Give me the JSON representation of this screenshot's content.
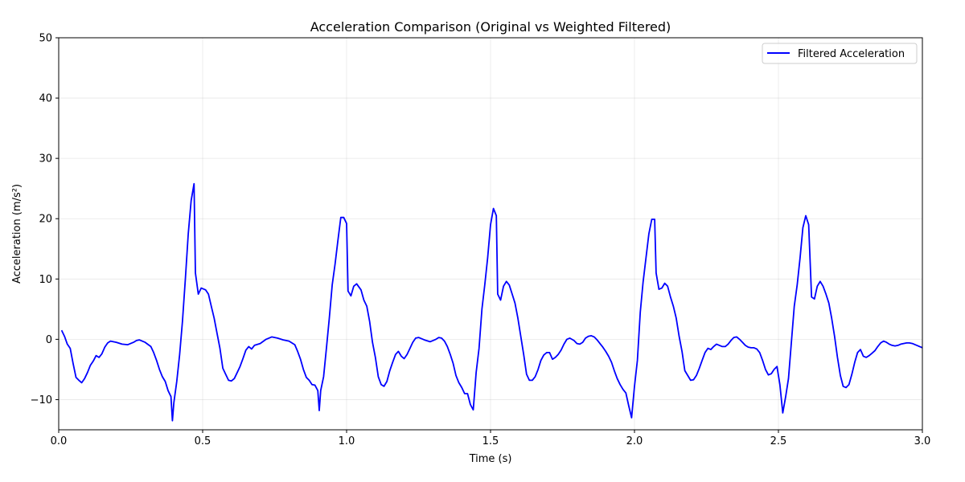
{
  "chart_data": {
    "type": "line",
    "title": "Acceleration Comparison (Original vs Weighted Filtered)",
    "xlabel": "Time (s)",
    "ylabel": "Acceleration (m/s²)",
    "xlim": [
      0,
      3.0
    ],
    "ylim": [
      -15,
      50
    ],
    "xticks": [
      0,
      0.5,
      1.0,
      1.5,
      2.0,
      2.5,
      3.0
    ],
    "xtick_labels": [
      "0.0",
      "0.5",
      "1.0",
      "1.5",
      "2.0",
      "2.5",
      "3.0"
    ],
    "yticks": [
      -10,
      0,
      10,
      20,
      30,
      40,
      50
    ],
    "ytick_labels": [
      "−10",
      "0",
      "10",
      "20",
      "30",
      "40",
      "50"
    ],
    "grid": true,
    "legend_position": "top-right",
    "series": [
      {
        "name": "Filtered Acceleration",
        "color": "#0000ff",
        "points": [
          [
            0.01,
            1.5
          ],
          [
            0.02,
            0.5
          ],
          [
            0.03,
            -0.8
          ],
          [
            0.04,
            -1.5
          ],
          [
            0.05,
            -4.0
          ],
          [
            0.06,
            -6.3
          ],
          [
            0.07,
            -6.8
          ],
          [
            0.08,
            -7.2
          ],
          [
            0.09,
            -6.5
          ],
          [
            0.1,
            -5.5
          ],
          [
            0.11,
            -4.3
          ],
          [
            0.12,
            -3.6
          ],
          [
            0.13,
            -2.7
          ],
          [
            0.14,
            -3.0
          ],
          [
            0.15,
            -2.4
          ],
          [
            0.16,
            -1.3
          ],
          [
            0.17,
            -0.6
          ],
          [
            0.18,
            -0.3
          ],
          [
            0.2,
            -0.5
          ],
          [
            0.22,
            -0.8
          ],
          [
            0.24,
            -0.9
          ],
          [
            0.26,
            -0.5
          ],
          [
            0.27,
            -0.2
          ],
          [
            0.28,
            -0.1
          ],
          [
            0.3,
            -0.5
          ],
          [
            0.32,
            -1.2
          ],
          [
            0.33,
            -2.2
          ],
          [
            0.34,
            -3.5
          ],
          [
            0.35,
            -5.0
          ],
          [
            0.36,
            -6.2
          ],
          [
            0.37,
            -7.0
          ],
          [
            0.38,
            -8.5
          ],
          [
            0.39,
            -9.5
          ],
          [
            0.395,
            -13.5
          ],
          [
            0.4,
            -10.5
          ],
          [
            0.41,
            -7.0
          ],
          [
            0.42,
            -2.5
          ],
          [
            0.43,
            3.0
          ],
          [
            0.44,
            10.0
          ],
          [
            0.45,
            17.5
          ],
          [
            0.46,
            23.0
          ],
          [
            0.47,
            25.8
          ],
          [
            0.475,
            11.0
          ],
          [
            0.485,
            7.5
          ],
          [
            0.495,
            8.5
          ],
          [
            0.51,
            8.2
          ],
          [
            0.52,
            7.5
          ],
          [
            0.53,
            5.5
          ],
          [
            0.54,
            3.5
          ],
          [
            0.55,
            1.0
          ],
          [
            0.56,
            -1.5
          ],
          [
            0.57,
            -4.8
          ],
          [
            0.58,
            -5.8
          ],
          [
            0.59,
            -6.8
          ],
          [
            0.6,
            -6.9
          ],
          [
            0.61,
            -6.5
          ],
          [
            0.62,
            -5.5
          ],
          [
            0.63,
            -4.5
          ],
          [
            0.64,
            -3.2
          ],
          [
            0.65,
            -1.8
          ],
          [
            0.66,
            -1.2
          ],
          [
            0.67,
            -1.6
          ],
          [
            0.68,
            -1.0
          ],
          [
            0.7,
            -0.7
          ],
          [
            0.72,
            0.0
          ],
          [
            0.74,
            0.4
          ],
          [
            0.76,
            0.2
          ],
          [
            0.78,
            -0.1
          ],
          [
            0.8,
            -0.3
          ],
          [
            0.82,
            -0.9
          ],
          [
            0.83,
            -2.0
          ],
          [
            0.84,
            -3.3
          ],
          [
            0.85,
            -5.0
          ],
          [
            0.86,
            -6.3
          ],
          [
            0.87,
            -6.8
          ],
          [
            0.88,
            -7.5
          ],
          [
            0.89,
            -7.6
          ],
          [
            0.9,
            -8.5
          ],
          [
            0.905,
            -11.8
          ],
          [
            0.91,
            -8.5
          ],
          [
            0.92,
            -6.2
          ],
          [
            0.93,
            -1.5
          ],
          [
            0.94,
            3.5
          ],
          [
            0.95,
            9.0
          ],
          [
            0.96,
            12.5
          ],
          [
            0.97,
            16.5
          ],
          [
            0.98,
            20.2
          ],
          [
            0.99,
            20.2
          ],
          [
            1.0,
            19.2
          ],
          [
            1.005,
            8.0
          ],
          [
            1.015,
            7.2
          ],
          [
            1.025,
            8.8
          ],
          [
            1.035,
            9.2
          ],
          [
            1.05,
            8.2
          ],
          [
            1.06,
            6.5
          ],
          [
            1.07,
            5.5
          ],
          [
            1.08,
            3.0
          ],
          [
            1.09,
            -0.5
          ],
          [
            1.1,
            -3.0
          ],
          [
            1.11,
            -6.2
          ],
          [
            1.12,
            -7.5
          ],
          [
            1.13,
            -7.8
          ],
          [
            1.14,
            -7.0
          ],
          [
            1.15,
            -5.2
          ],
          [
            1.16,
            -3.8
          ],
          [
            1.17,
            -2.5
          ],
          [
            1.18,
            -2.0
          ],
          [
            1.19,
            -2.8
          ],
          [
            1.2,
            -3.2
          ],
          [
            1.21,
            -2.5
          ],
          [
            1.22,
            -1.5
          ],
          [
            1.23,
            -0.5
          ],
          [
            1.24,
            0.2
          ],
          [
            1.25,
            0.3
          ],
          [
            1.27,
            -0.1
          ],
          [
            1.29,
            -0.4
          ],
          [
            1.31,
            0.0
          ],
          [
            1.32,
            0.3
          ],
          [
            1.33,
            0.2
          ],
          [
            1.34,
            -0.3
          ],
          [
            1.35,
            -1.2
          ],
          [
            1.36,
            -2.5
          ],
          [
            1.37,
            -4.0
          ],
          [
            1.38,
            -6.0
          ],
          [
            1.39,
            -7.2
          ],
          [
            1.4,
            -8.0
          ],
          [
            1.41,
            -9.0
          ],
          [
            1.42,
            -9.0
          ],
          [
            1.43,
            -10.8
          ],
          [
            1.44,
            -11.7
          ],
          [
            1.45,
            -5.5
          ],
          [
            1.46,
            -1.5
          ],
          [
            1.47,
            5.0
          ],
          [
            1.48,
            9.0
          ],
          [
            1.49,
            13.5
          ],
          [
            1.5,
            19.0
          ],
          [
            1.51,
            21.7
          ],
          [
            1.52,
            20.5
          ],
          [
            1.525,
            7.5
          ],
          [
            1.535,
            6.5
          ],
          [
            1.545,
            8.8
          ],
          [
            1.555,
            9.6
          ],
          [
            1.565,
            9.0
          ],
          [
            1.575,
            7.5
          ],
          [
            1.585,
            6.0
          ],
          [
            1.595,
            3.5
          ],
          [
            1.605,
            0.5
          ],
          [
            1.615,
            -2.5
          ],
          [
            1.625,
            -5.8
          ],
          [
            1.635,
            -6.8
          ],
          [
            1.645,
            -6.8
          ],
          [
            1.655,
            -6.2
          ],
          [
            1.665,
            -5.0
          ],
          [
            1.675,
            -3.5
          ],
          [
            1.685,
            -2.6
          ],
          [
            1.695,
            -2.2
          ],
          [
            1.705,
            -2.2
          ],
          [
            1.715,
            -3.3
          ],
          [
            1.725,
            -3.0
          ],
          [
            1.735,
            -2.5
          ],
          [
            1.745,
            -1.8
          ],
          [
            1.755,
            -0.8
          ],
          [
            1.765,
            0.0
          ],
          [
            1.775,
            0.2
          ],
          [
            1.79,
            -0.2
          ],
          [
            1.8,
            -0.7
          ],
          [
            1.81,
            -0.8
          ],
          [
            1.82,
            -0.5
          ],
          [
            1.83,
            0.2
          ],
          [
            1.84,
            0.5
          ],
          [
            1.85,
            0.6
          ],
          [
            1.86,
            0.4
          ],
          [
            1.87,
            -0.1
          ],
          [
            1.88,
            -0.7
          ],
          [
            1.89,
            -1.3
          ],
          [
            1.9,
            -2.0
          ],
          [
            1.91,
            -2.8
          ],
          [
            1.92,
            -3.8
          ],
          [
            1.93,
            -5.2
          ],
          [
            1.94,
            -6.5
          ],
          [
            1.95,
            -7.5
          ],
          [
            1.96,
            -8.3
          ],
          [
            1.97,
            -8.9
          ],
          [
            1.98,
            -11.0
          ],
          [
            1.99,
            -13.0
          ],
          [
            2.0,
            -7.8
          ],
          [
            2.01,
            -3.5
          ],
          [
            2.02,
            4.5
          ],
          [
            2.03,
            9.5
          ],
          [
            2.04,
            13.5
          ],
          [
            2.05,
            17.5
          ],
          [
            2.06,
            19.9
          ],
          [
            2.07,
            19.9
          ],
          [
            2.075,
            11.0
          ],
          [
            2.085,
            8.3
          ],
          [
            2.095,
            8.5
          ],
          [
            2.105,
            9.3
          ],
          [
            2.115,
            8.8
          ],
          [
            2.125,
            7.0
          ],
          [
            2.135,
            5.5
          ],
          [
            2.145,
            3.5
          ],
          [
            2.155,
            0.5
          ],
          [
            2.165,
            -2.0
          ],
          [
            2.175,
            -5.2
          ],
          [
            2.185,
            -6.0
          ],
          [
            2.195,
            -6.8
          ],
          [
            2.205,
            -6.7
          ],
          [
            2.215,
            -6.0
          ],
          [
            2.225,
            -4.8
          ],
          [
            2.235,
            -3.5
          ],
          [
            2.245,
            -2.2
          ],
          [
            2.255,
            -1.5
          ],
          [
            2.265,
            -1.7
          ],
          [
            2.275,
            -1.2
          ],
          [
            2.285,
            -0.8
          ],
          [
            2.295,
            -1.0
          ],
          [
            2.305,
            -1.2
          ],
          [
            2.315,
            -1.2
          ],
          [
            2.325,
            -0.8
          ],
          [
            2.335,
            -0.2
          ],
          [
            2.345,
            0.3
          ],
          [
            2.355,
            0.4
          ],
          [
            2.365,
            0.0
          ],
          [
            2.375,
            -0.5
          ],
          [
            2.385,
            -1.0
          ],
          [
            2.395,
            -1.3
          ],
          [
            2.405,
            -1.4
          ],
          [
            2.415,
            -1.4
          ],
          [
            2.425,
            -1.6
          ],
          [
            2.435,
            -2.2
          ],
          [
            2.445,
            -3.5
          ],
          [
            2.455,
            -5.0
          ],
          [
            2.465,
            -5.9
          ],
          [
            2.475,
            -5.7
          ],
          [
            2.485,
            -5.0
          ],
          [
            2.495,
            -4.5
          ],
          [
            2.505,
            -7.5
          ],
          [
            2.515,
            -12.2
          ],
          [
            2.525,
            -9.5
          ],
          [
            2.535,
            -6.5
          ],
          [
            2.545,
            -0.5
          ],
          [
            2.555,
            5.5
          ],
          [
            2.565,
            9.0
          ],
          [
            2.575,
            13.5
          ],
          [
            2.585,
            18.5
          ],
          [
            2.595,
            20.5
          ],
          [
            2.605,
            19.0
          ],
          [
            2.615,
            7.0
          ],
          [
            2.625,
            6.7
          ],
          [
            2.635,
            8.8
          ],
          [
            2.645,
            9.6
          ],
          [
            2.655,
            8.8
          ],
          [
            2.665,
            7.5
          ],
          [
            2.675,
            6.0
          ],
          [
            2.685,
            3.5
          ],
          [
            2.695,
            0.5
          ],
          [
            2.705,
            -3.0
          ],
          [
            2.715,
            -6.0
          ],
          [
            2.725,
            -7.8
          ],
          [
            2.735,
            -8.0
          ],
          [
            2.745,
            -7.5
          ],
          [
            2.755,
            -5.8
          ],
          [
            2.765,
            -3.8
          ],
          [
            2.775,
            -2.2
          ],
          [
            2.785,
            -1.7
          ],
          [
            2.795,
            -2.8
          ],
          [
            2.805,
            -3.0
          ],
          [
            2.815,
            -2.7
          ],
          [
            2.825,
            -2.3
          ],
          [
            2.835,
            -1.9
          ],
          [
            2.845,
            -1.2
          ],
          [
            2.855,
            -0.6
          ],
          [
            2.865,
            -0.3
          ],
          [
            2.875,
            -0.5
          ],
          [
            2.885,
            -0.8
          ],
          [
            2.895,
            -1.0
          ],
          [
            2.905,
            -1.1
          ],
          [
            2.915,
            -1.0
          ],
          [
            2.925,
            -0.8
          ],
          [
            2.935,
            -0.7
          ],
          [
            2.945,
            -0.6
          ],
          [
            2.955,
            -0.6
          ],
          [
            2.965,
            -0.7
          ],
          [
            2.975,
            -0.9
          ],
          [
            2.985,
            -1.1
          ],
          [
            2.995,
            -1.3
          ],
          [
            3.0,
            -1.4
          ]
        ]
      }
    ]
  }
}
